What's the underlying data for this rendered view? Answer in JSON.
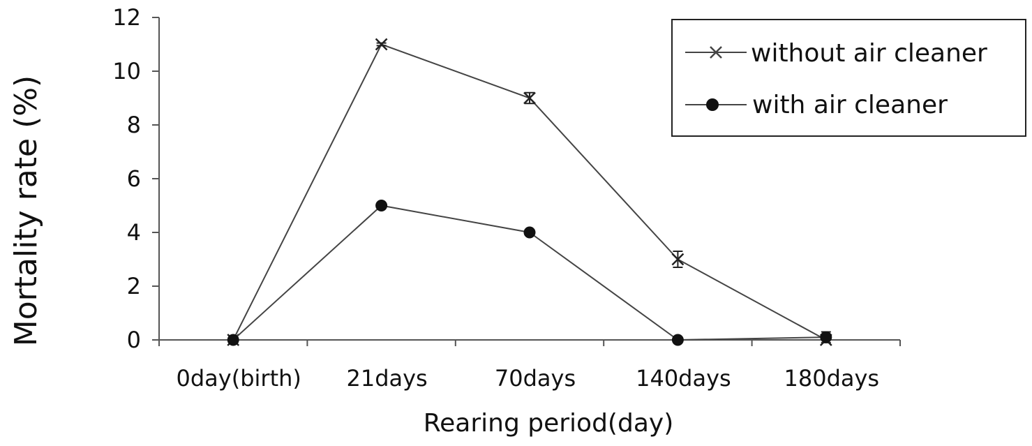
{
  "chart_data": {
    "type": "line",
    "title": "",
    "xlabel": "Rearing period(day)",
    "ylabel": "Mortality rate (%)",
    "categories": [
      "0day(birth)",
      "21days",
      "70days",
      "140days",
      "180days"
    ],
    "ylim": [
      0,
      12
    ],
    "yticks": [
      0,
      2,
      4,
      6,
      8,
      10,
      12
    ],
    "grid": false,
    "legend_position": "top-right",
    "series": [
      {
        "name": "without air cleaner",
        "marker": "x",
        "color": "#444444",
        "values": [
          0,
          11,
          9,
          3,
          0
        ],
        "error": [
          0,
          0.05,
          0.2,
          0.3,
          0
        ]
      },
      {
        "name": "with air cleaner",
        "marker": "circle",
        "color": "#444444",
        "values": [
          0,
          5,
          4,
          0,
          0.1
        ],
        "error": [
          0,
          0,
          0.1,
          0,
          0.2
        ]
      }
    ]
  }
}
